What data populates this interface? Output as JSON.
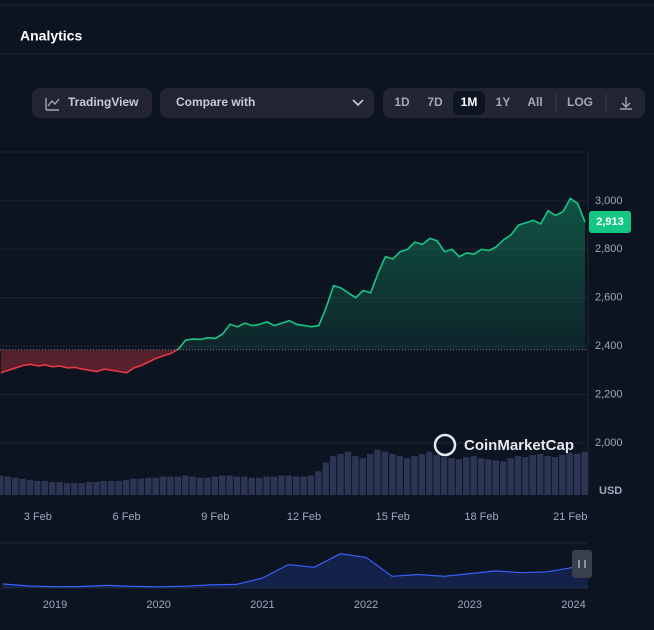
{
  "header": {
    "title": "Analytics"
  },
  "toolbar": {
    "tradingview": "TradingView",
    "compare": "Compare with",
    "ranges": [
      "1D",
      "7D",
      "1M",
      "1Y",
      "All"
    ],
    "active_range": 2,
    "log": "LOG"
  },
  "chart_data": [
    {
      "type": "line",
      "watermark": "CoinMarketCap",
      "y_unit": "USD",
      "up_color": "#16c784",
      "down_color": "#ea3943",
      "volume_color": "#323b5c",
      "baseline": 2385,
      "current_price": 2913,
      "current_price_label": "2,913",
      "xlim": [
        1.72,
        21.6
      ],
      "xticks": [
        {
          "value": 3,
          "label": "3 Feb"
        },
        {
          "value": 6,
          "label": "6 Feb"
        },
        {
          "value": 9,
          "label": "9 Feb"
        },
        {
          "value": 12,
          "label": "12 Feb"
        },
        {
          "value": 15,
          "label": "15 Feb"
        },
        {
          "value": 18,
          "label": "18 Feb"
        },
        {
          "value": 21,
          "label": "21 Feb"
        }
      ],
      "ylim": [
        1785,
        3202
      ],
      "yticks": [
        {
          "value": 2000,
          "label": "2,000"
        },
        {
          "value": 2200,
          "label": "2,200"
        },
        {
          "value": 2400,
          "label": "2,400"
        },
        {
          "value": 2600,
          "label": "2,600"
        },
        {
          "value": 2800,
          "label": "2,800"
        },
        {
          "value": 3000,
          "label": "3,000"
        }
      ],
      "grid": true,
      "x": [
        1.75,
        2,
        2.25,
        2.5,
        2.75,
        3,
        3.25,
        3.5,
        3.75,
        4,
        4.25,
        4.5,
        4.75,
        5,
        5.25,
        5.5,
        5.75,
        6,
        6.25,
        6.5,
        6.75,
        7,
        7.25,
        7.5,
        7.75,
        8,
        8.25,
        8.5,
        8.75,
        9,
        9.25,
        9.5,
        9.75,
        10,
        10.25,
        10.5,
        10.75,
        11,
        11.25,
        11.5,
        11.75,
        12,
        12.25,
        12.5,
        12.75,
        13,
        13.25,
        13.5,
        13.75,
        14,
        14.25,
        14.5,
        14.75,
        15,
        15.25,
        15.5,
        15.75,
        16,
        16.25,
        16.5,
        16.75,
        17,
        17.25,
        17.5,
        17.75,
        18,
        18.25,
        18.5,
        18.75,
        19,
        19.25,
        19.5,
        19.75,
        20,
        20.25,
        20.5,
        20.75,
        21,
        21.25,
        21.5
      ],
      "values": [
        2290,
        2300,
        2310,
        2320,
        2325,
        2318,
        2322,
        2315,
        2318,
        2310,
        2312,
        2305,
        2300,
        2295,
        2305,
        2300,
        2295,
        2290,
        2310,
        2320,
        2335,
        2350,
        2360,
        2370,
        2388,
        2425,
        2430,
        2428,
        2435,
        2432,
        2450,
        2490,
        2480,
        2495,
        2485,
        2490,
        2500,
        2485,
        2495,
        2505,
        2490,
        2485,
        2480,
        2485,
        2560,
        2650,
        2640,
        2620,
        2600,
        2630,
        2620,
        2700,
        2770,
        2760,
        2790,
        2800,
        2830,
        2820,
        2845,
        2835,
        2790,
        2800,
        2770,
        2785,
        2780,
        2800,
        2795,
        2810,
        2840,
        2860,
        2900,
        2910,
        2920,
        2905,
        2960,
        2940,
        2955,
        3010,
        2990,
        2913
      ],
      "volume": [
        18,
        17,
        16,
        15,
        14,
        13,
        13,
        12,
        12,
        11,
        11,
        11,
        12,
        12,
        13,
        13,
        13,
        14,
        15,
        15,
        16,
        16,
        17,
        17,
        17,
        18,
        17,
        16,
        16,
        17,
        18,
        18,
        17,
        17,
        16,
        16,
        17,
        17,
        18,
        18,
        17,
        17,
        18,
        22,
        30,
        36,
        38,
        40,
        36,
        34,
        38,
        42,
        40,
        38,
        36,
        34,
        36,
        38,
        40,
        37,
        35,
        34,
        33,
        35,
        36,
        34,
        33,
        32,
        31,
        34,
        36,
        35,
        37,
        38,
        36,
        35,
        37,
        39,
        38,
        40
      ]
    },
    {
      "type": "line",
      "color": "#3861fb",
      "xlim": [
        2018.47,
        2024.14
      ],
      "ylim": [
        0,
        5000
      ],
      "xticks": [
        2019,
        2020,
        2021,
        2022,
        2023,
        2024
      ],
      "x": [
        2018.5,
        2018.75,
        2019,
        2019.25,
        2019.5,
        2019.75,
        2020,
        2020.25,
        2020.5,
        2020.75,
        2021,
        2021.25,
        2021.5,
        2021.75,
        2022,
        2022.25,
        2022.5,
        2022.75,
        2023,
        2023.25,
        2023.5,
        2023.75,
        2024,
        2024.14
      ],
      "values": [
        450,
        220,
        140,
        170,
        290,
        180,
        130,
        200,
        350,
        400,
        1100,
        2600,
        2300,
        3800,
        3400,
        1300,
        1500,
        1300,
        1600,
        1900,
        1700,
        1800,
        2300,
        2900
      ]
    }
  ]
}
